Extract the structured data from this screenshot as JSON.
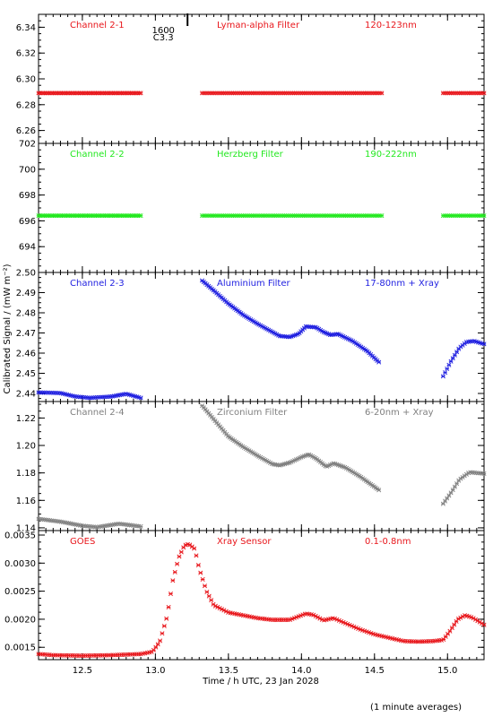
{
  "footer_note": "(1 minute averages)",
  "annotation": {
    "line1": "1600",
    "line2": "C3.3",
    "x": 13.22
  },
  "chart_data": {
    "type": "scatter",
    "xlabel": "Time / h UTC, 23 Jan 2028",
    "ylabel": "Calibrated Signal / (mW m⁻²)",
    "xlim": [
      12.2,
      15.25
    ],
    "xticks": [
      12.5,
      13.0,
      13.5,
      14.0,
      14.5,
      15.0
    ],
    "xtick_labels": [
      "12.5",
      "13.0",
      "13.5",
      "14.0",
      "14.5",
      "15.0"
    ],
    "marker": "asterisk",
    "panels": [
      {
        "name": "Channel 2-1",
        "filter": "Lyman-alpha Filter",
        "band": "120-123nm",
        "color": "#e8161b",
        "ylim": [
          6.25,
          6.35
        ],
        "yticks": [
          6.26,
          6.28,
          6.3,
          6.32,
          6.34
        ],
        "ytick_labels": [
          "6.26",
          "6.28",
          "6.30",
          "6.32",
          "6.34"
        ],
        "segments": [
          {
            "points": [
              [
                12.2,
                6.289
              ],
              [
                12.9,
                6.289
              ]
            ],
            "n": 70
          },
          {
            "points": [
              [
                13.32,
                6.289
              ],
              [
                14.55,
                6.289
              ]
            ],
            "n": 110
          },
          {
            "points": [
              [
                14.97,
                6.289
              ],
              [
                15.25,
                6.289
              ]
            ],
            "n": 26
          }
        ]
      },
      {
        "name": "Channel 2-2",
        "filter": "Herzberg Filter",
        "band": "190-222nm",
        "color": "#22e81e",
        "ylim": [
          692,
          702
        ],
        "yticks": [
          694,
          696,
          698,
          700,
          702
        ],
        "ytick_labels": [
          "694",
          "696",
          "698",
          "700",
          "702"
        ],
        "segments": [
          {
            "points": [
              [
                12.2,
                696.4
              ],
              [
                12.9,
                696.4
              ]
            ],
            "n": 70
          },
          {
            "points": [
              [
                13.32,
                696.4
              ],
              [
                14.55,
                696.4
              ]
            ],
            "n": 110
          },
          {
            "points": [
              [
                14.97,
                696.4
              ],
              [
                15.25,
                696.4
              ]
            ],
            "n": 26
          }
        ]
      },
      {
        "name": "Channel 2-3",
        "filter": "Aluminium Filter",
        "band": "17-80nm + Xray",
        "color": "#1e1ee0",
        "ylim": [
          2.436,
          2.5
        ],
        "yticks": [
          2.44,
          2.45,
          2.46,
          2.47,
          2.48,
          2.49,
          2.5
        ],
        "ytick_labels": [
          "2.44",
          "2.45",
          "2.46",
          "2.47",
          "2.48",
          "2.49",
          "2.50"
        ],
        "segments": [
          {
            "points": [
              [
                12.2,
                2.4405
              ],
              [
                12.35,
                2.4402
              ],
              [
                12.45,
                2.4385
              ],
              [
                12.55,
                2.4378
              ],
              [
                12.7,
                2.4385
              ],
              [
                12.8,
                2.4398
              ],
              [
                12.9,
                2.4378
              ]
            ],
            "n": 55
          },
          {
            "points": [
              [
                13.32,
                2.496
              ],
              [
                13.4,
                2.491
              ],
              [
                13.5,
                2.4845
              ],
              [
                13.6,
                2.479
              ],
              [
                13.7,
                2.4745
              ],
              [
                13.8,
                2.4705
              ],
              [
                13.85,
                2.4685
              ],
              [
                13.92,
                2.468
              ],
              [
                13.98,
                2.4695
              ],
              [
                14.03,
                2.4732
              ],
              [
                14.1,
                2.4728
              ],
              [
                14.15,
                2.4705
              ],
              [
                14.2,
                2.469
              ],
              [
                14.25,
                2.4695
              ],
              [
                14.35,
                2.466
              ],
              [
                14.45,
                2.461
              ],
              [
                14.53,
                2.4555
              ]
            ],
            "n": 110
          },
          {
            "points": [
              [
                14.97,
                2.4485
              ],
              [
                15.02,
                2.4555
              ],
              [
                15.08,
                2.4625
              ],
              [
                15.13,
                2.4655
              ],
              [
                15.18,
                2.466
              ],
              [
                15.25,
                2.4645
              ]
            ],
            "n": 22
          }
        ]
      },
      {
        "name": "Channel 2-4",
        "filter": "Zirconium Filter",
        "band": "6-20nm + Xray",
        "color": "#808080",
        "ylim": [
          1.138,
          1.232
        ],
        "yticks": [
          1.14,
          1.16,
          1.18,
          1.2,
          1.22
        ],
        "ytick_labels": [
          "1.14",
          "1.16",
          "1.18",
          "1.20",
          "1.22"
        ],
        "segments": [
          {
            "points": [
              [
                12.2,
                1.1465
              ],
              [
                12.35,
                1.1445
              ],
              [
                12.5,
                1.1415
              ],
              [
                12.6,
                1.1405
              ],
              [
                12.75,
                1.143
              ],
              [
                12.9,
                1.141
              ]
            ],
            "n": 55
          },
          {
            "points": [
              [
                13.32,
                1.229
              ],
              [
                13.4,
                1.219
              ],
              [
                13.5,
                1.2065
              ],
              [
                13.6,
                1.199
              ],
              [
                13.7,
                1.1925
              ],
              [
                13.8,
                1.1865
              ],
              [
                13.85,
                1.1855
              ],
              [
                13.92,
                1.1875
              ],
              [
                14.0,
                1.1915
              ],
              [
                14.05,
                1.1935
              ],
              [
                14.1,
                1.1905
              ],
              [
                14.17,
                1.1845
              ],
              [
                14.22,
                1.187
              ],
              [
                14.3,
                1.184
              ],
              [
                14.4,
                1.1775
              ],
              [
                14.53,
                1.1675
              ]
            ],
            "n": 110
          },
          {
            "points": [
              [
                14.97,
                1.1575
              ],
              [
                15.03,
                1.1665
              ],
              [
                15.08,
                1.175
              ],
              [
                15.15,
                1.1805
              ],
              [
                15.25,
                1.1795
              ]
            ],
            "n": 22
          }
        ]
      },
      {
        "name": "GOES",
        "filter": "Xray Sensor",
        "band": "0.1-0.8nm",
        "color": "#e8161b",
        "ylim": [
          0.00128,
          0.00358
        ],
        "yticks": [
          0.0015,
          0.002,
          0.0025,
          0.003,
          0.0035
        ],
        "ytick_labels": [
          "0.0015",
          "0.0020",
          "0.0025",
          "0.0030",
          "0.0035"
        ],
        "segments": [
          {
            "points": [
              [
                12.2,
                0.00138
              ],
              [
                12.3,
                0.00136
              ],
              [
                12.5,
                0.00135
              ],
              [
                12.7,
                0.00136
              ],
              [
                12.9,
                0.00138
              ],
              [
                12.98,
                0.00142
              ],
              [
                13.03,
                0.0016
              ],
              [
                13.08,
                0.00205
              ],
              [
                13.12,
                0.0027
              ],
              [
                13.16,
                0.0031
              ],
              [
                13.2,
                0.00332
              ],
              [
                13.23,
                0.00334
              ],
              [
                13.27,
                0.00325
              ],
              [
                13.3,
                0.0029
              ],
              [
                13.35,
                0.0025
              ],
              [
                13.4,
                0.00225
              ],
              [
                13.5,
                0.00212
              ],
              [
                13.6,
                0.00207
              ],
              [
                13.7,
                0.00202
              ],
              [
                13.8,
                0.00199
              ],
              [
                13.92,
                0.00199
              ],
              [
                13.98,
                0.00205
              ],
              [
                14.03,
                0.0021
              ],
              [
                14.08,
                0.00208
              ],
              [
                14.15,
                0.00198
              ],
              [
                14.22,
                0.00202
              ],
              [
                14.3,
                0.00193
              ],
              [
                14.4,
                0.00182
              ],
              [
                14.5,
                0.00173
              ],
              [
                14.6,
                0.00167
              ],
              [
                14.7,
                0.00161
              ],
              [
                14.8,
                0.0016
              ],
              [
                14.9,
                0.00161
              ],
              [
                14.97,
                0.00163
              ],
              [
                15.02,
                0.0018
              ],
              [
                15.07,
                0.002
              ],
              [
                15.12,
                0.00207
              ],
              [
                15.17,
                0.00203
              ],
              [
                15.22,
                0.00195
              ],
              [
                15.25,
                0.0019
              ]
            ],
            "n": 210
          }
        ]
      }
    ]
  }
}
